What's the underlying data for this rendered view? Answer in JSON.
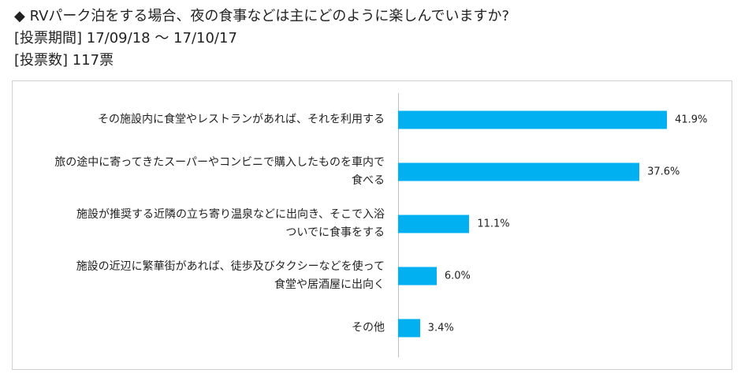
{
  "chart_data": {
    "type": "bar",
    "orientation": "horizontal",
    "title": "◆  RVパーク泊をする場合、夜の食事などは主にどのように楽しんでいますか?",
    "subtitle": [
      "[投票期間] 17/09/18 ～ 17/10/17",
      "[投票数] 117票"
    ],
    "categories": [
      "その施設内に食堂やレストランがあれば、それを利用する",
      "旅の途中に寄ってきたスーパーやコンビニで購入したものを車内で\n食べる",
      "施設が推奨する近隣の立ち寄り温泉などに出向き、そこで入浴\nついでに食事をする",
      "施設の近辺に繁華街があれば、徒歩及びタクシーなどを使って\n食堂や居酒屋に出向く",
      "その他"
    ],
    "values": [
      41.9,
      37.6,
      11.1,
      6.0,
      3.4
    ],
    "value_labels": [
      "41.9%",
      "37.6%",
      "11.1%",
      "6.0%",
      "3.4%"
    ],
    "color": "#00b0f0"
  }
}
